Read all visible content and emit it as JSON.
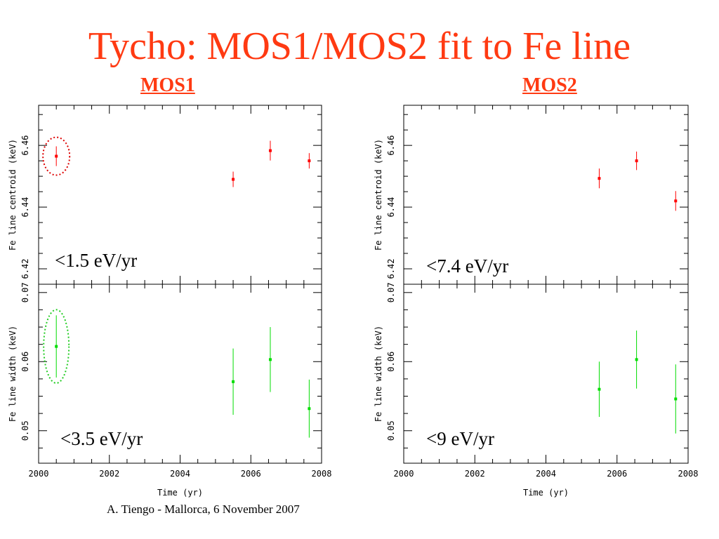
{
  "title": "Tycho: MOS1/MOS2 fit to Fe line",
  "footer": "A. Tiengo - Mallorca,  6 November 2007",
  "colors": {
    "title": "#ff3a12",
    "centroid_series": "#ff0000",
    "width_series": "#00dd00",
    "centroid_highlight": "#dd0000",
    "width_highlight": "#22cc22"
  },
  "chart_data": [
    {
      "panel": "MOS1",
      "type": "scatter",
      "title": "MOS1",
      "xlabel": "Time (yr)",
      "xlim": [
        2000,
        2008
      ],
      "x_ticks": [
        "2000",
        "2002",
        "2004",
        "2006",
        "2008"
      ],
      "subplots": [
        {
          "ylabel": "Fe line centroid (keV)",
          "ylim": [
            6.415,
            6.473
          ],
          "y_ticks": [
            "6.42",
            "6.44",
            "6.46"
          ],
          "annotation": "<1.5 eV/yr",
          "highlight_first_point": true,
          "points": [
            {
              "x": 2000.5,
              "y": 6.4565,
              "err": 0.0032
            },
            {
              "x": 2005.5,
              "y": 6.449,
              "err": 0.0025
            },
            {
              "x": 2006.55,
              "y": 6.4583,
              "err": 0.0032
            },
            {
              "x": 2007.65,
              "y": 6.455,
              "err": 0.0025
            }
          ]
        },
        {
          "ylabel": "Fe line width (keV)",
          "ylim": [
            0.0453,
            0.0712
          ],
          "y_ticks": [
            "0.05",
            "0.06",
            "0.07"
          ],
          "annotation": "<3.5 eV/yr",
          "highlight_first_point": true,
          "points": [
            {
              "x": 2000.5,
              "y": 0.0622,
              "err": 0.0045
            },
            {
              "x": 2005.5,
              "y": 0.0571,
              "err": 0.0048
            },
            {
              "x": 2006.55,
              "y": 0.0603,
              "err": 0.0047
            },
            {
              "x": 2007.65,
              "y": 0.0532,
              "err": 0.0042
            }
          ]
        }
      ]
    },
    {
      "panel": "MOS2",
      "type": "scatter",
      "title": "MOS2",
      "xlabel": "Time (yr)",
      "xlim": [
        2000,
        2008
      ],
      "x_ticks": [
        "2000",
        "2002",
        "2004",
        "2006",
        "2008"
      ],
      "subplots": [
        {
          "ylabel": "Fe line centroid (keV)",
          "ylim": [
            6.415,
            6.473
          ],
          "y_ticks": [
            "6.42",
            "6.44",
            "6.46"
          ],
          "annotation": "<7.4 eV/yr",
          "highlight_first_point": false,
          "points": [
            {
              "x": 2005.5,
              "y": 6.4493,
              "err": 0.0032
            },
            {
              "x": 2006.55,
              "y": 6.455,
              "err": 0.003
            },
            {
              "x": 2007.65,
              "y": 6.442,
              "err": 0.0032
            }
          ]
        },
        {
          "ylabel": "Fe line width (keV)",
          "ylim": [
            0.0453,
            0.0712
          ],
          "y_ticks": [
            "0.05",
            "0.06",
            "0.07"
          ],
          "annotation": "<9 eV/yr",
          "highlight_first_point": false,
          "points": [
            {
              "x": 2005.5,
              "y": 0.056,
              "err": 0.004
            },
            {
              "x": 2006.55,
              "y": 0.0603,
              "err": 0.0042
            },
            {
              "x": 2007.65,
              "y": 0.0546,
              "err": 0.005
            }
          ]
        }
      ]
    }
  ]
}
